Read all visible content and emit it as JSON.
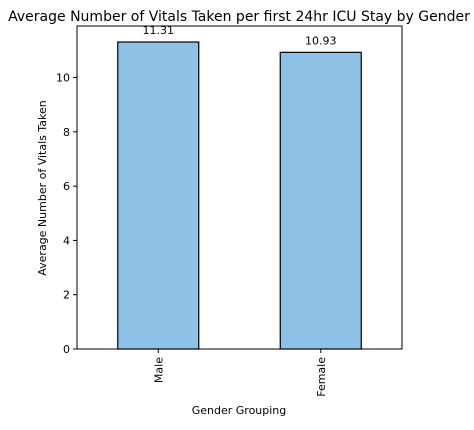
{
  "chart_data": {
    "type": "bar",
    "title": "Average Number of Vitals Taken per first 24hr ICU Stay by Gender",
    "xlabel": "Gender Grouping",
    "ylabel": "Average Number of Vitals Taken",
    "categories": [
      "Male",
      "Female"
    ],
    "values": [
      11.31,
      10.93
    ],
    "data_labels": [
      "11.31",
      "10.93"
    ],
    "ylim": [
      0,
      11.9
    ],
    "yticks": [
      0,
      2,
      4,
      6,
      8,
      10
    ],
    "grid": false,
    "legend": "none",
    "bar_color": "#8ec1e6",
    "bar_edge_color": "#000000"
  }
}
